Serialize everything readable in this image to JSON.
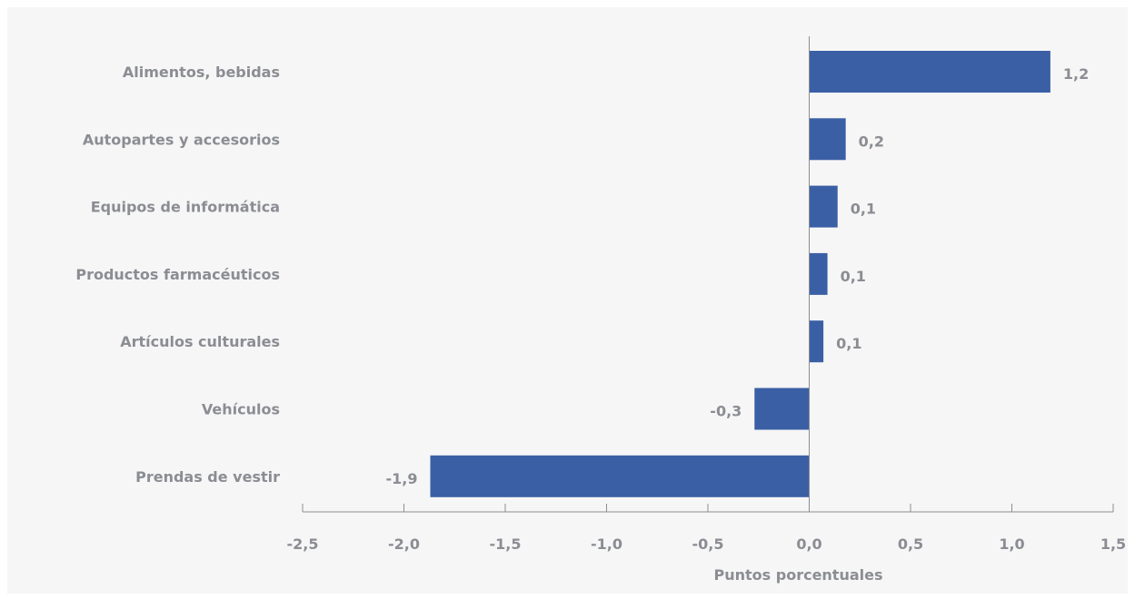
{
  "chart_data": {
    "type": "bar",
    "orientation": "horizontal",
    "categories": [
      "Alimentos, bebidas",
      "Autopartes y accesorios",
      "Equipos de informática",
      "Productos farmacéuticos",
      "Artículos culturales",
      "Vehículos",
      "Prendas de vestir"
    ],
    "values": [
      1.19,
      0.18,
      0.14,
      0.09,
      0.07,
      -0.27,
      -1.87
    ],
    "value_labels": [
      "1,2",
      "0,2",
      "0,1",
      "0,1",
      "0,1",
      "-0,3",
      "-1,9"
    ],
    "xlabel": "Puntos porcentuales",
    "xlim": [
      -2.5,
      1.5
    ],
    "ticks": [
      -2.5,
      -2.0,
      -1.5,
      -1.0,
      -0.5,
      0.0,
      0.5,
      1.0,
      1.5
    ],
    "tick_labels": [
      "-2,5",
      "-2,0",
      "-1,5",
      "-1,0",
      "-0,5",
      "0,0",
      "0,5",
      "1,0",
      "1,5"
    ],
    "grid": false,
    "legend": "none",
    "colors": {
      "bar": "#3a5fa5",
      "text": "#8b8d93",
      "axis": "#8b8d93",
      "background": "#f6f6f6"
    }
  }
}
